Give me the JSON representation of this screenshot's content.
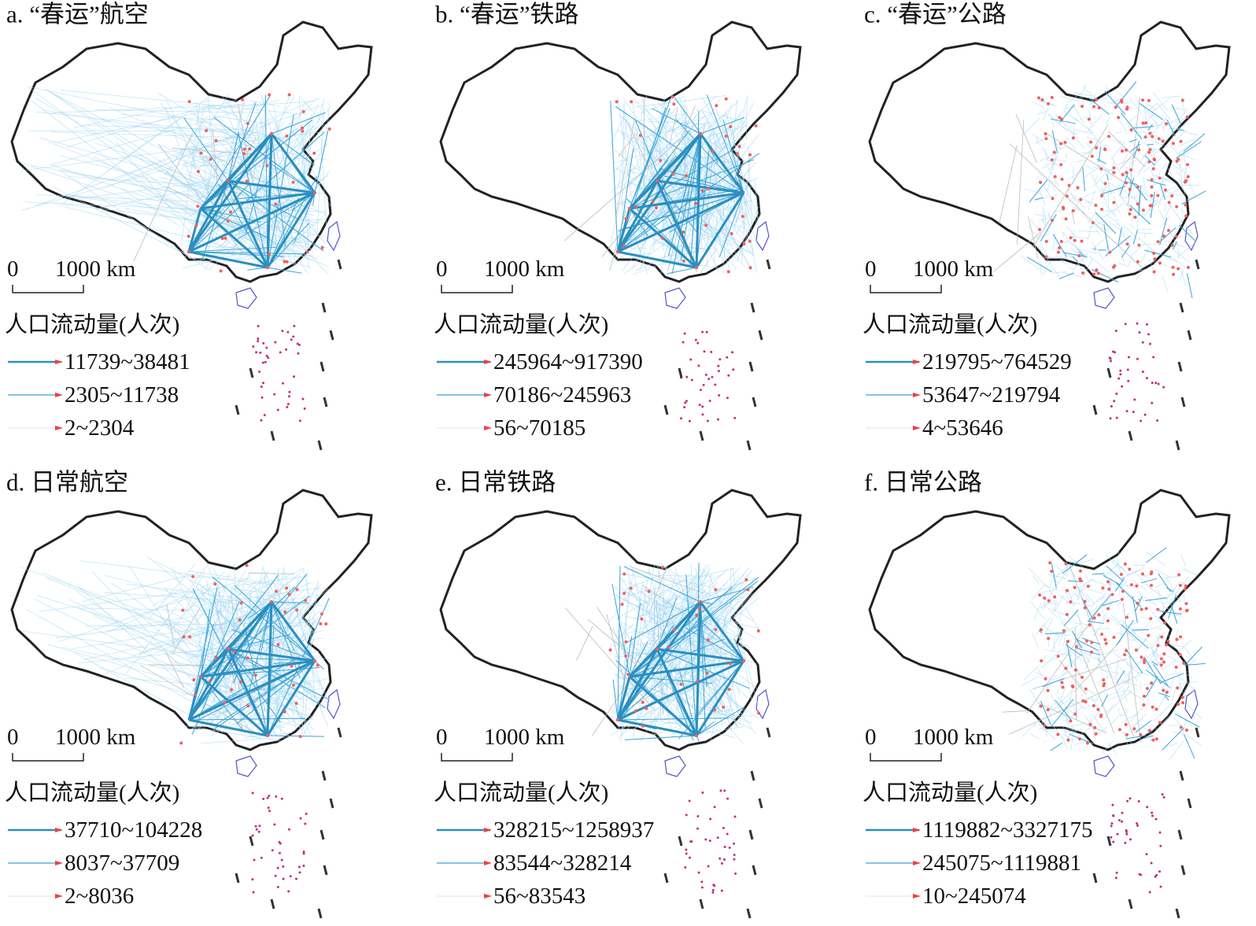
{
  "panels": [
    {
      "title": "a. “春运”航空",
      "scale_zero": "0",
      "scale_label": "1000 km",
      "legend_title": "人口流动量(人次)",
      "legend": [
        "11739~38481",
        "2305~11738",
        "2~2304"
      ]
    },
    {
      "title": "b. “春运”铁路",
      "scale_zero": "0",
      "scale_label": "1000 km",
      "legend_title": "人口流动量(人次)",
      "legend": [
        "245964~917390",
        "70186~245963",
        "56~70185"
      ]
    },
    {
      "title": "c. “春运”公路",
      "scale_zero": "0",
      "scale_label": "1000 km",
      "legend_title": "人口流动量(人次)",
      "legend": [
        "219795~764529",
        "53647~219794",
        "4~53646"
      ]
    },
    {
      "title": "d. 日常航空",
      "scale_zero": "0",
      "scale_label": "1000 km",
      "legend_title": "人口流动量(人次)",
      "legend": [
        "37710~104228",
        "8037~37709",
        "2~8036"
      ]
    },
    {
      "title": "e. 日常铁路",
      "scale_zero": "0",
      "scale_label": "1000 km",
      "legend_title": "人口流动量(人次)",
      "legend": [
        "328215~1258937",
        "83544~328214",
        "56~83543"
      ]
    },
    {
      "title": "f. 日常公路",
      "scale_zero": "0",
      "scale_label": "1000 km",
      "legend_title": "人口流动量(人次)",
      "legend": [
        "1119882~3327175",
        "245075~1119881",
        "10~245074"
      ]
    }
  ]
}
